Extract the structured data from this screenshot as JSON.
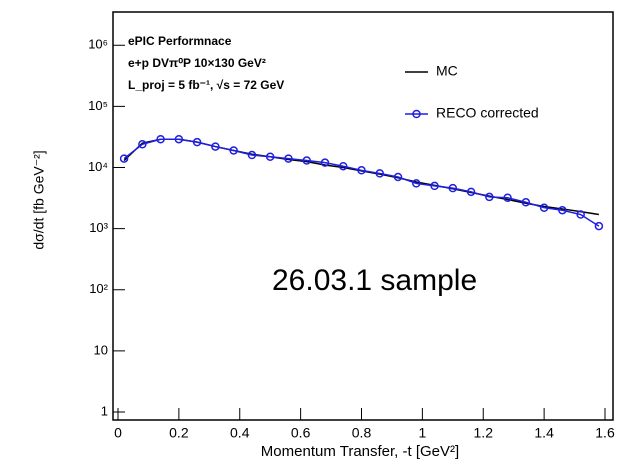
{
  "chart_data": {
    "type": "line",
    "log_y": true,
    "x_label": "Momentum Transfer, -t [GeV²]",
    "y_label": "dσ/dt [fb GeV⁻²]",
    "annotations": [
      "ePIC Performnace",
      "e+p DVπ⁰P 10×130 GeV²",
      "L_proj = 5 fb⁻¹, √s = 72 GeV",
      "26.03.1 sample"
    ],
    "x": [
      0.02,
      0.08,
      0.14,
      0.2,
      0.26,
      0.32,
      0.38,
      0.44,
      0.5,
      0.56,
      0.62,
      0.68,
      0.74,
      0.8,
      0.86,
      0.92,
      0.98,
      1.04,
      1.1,
      1.16,
      1.22,
      1.28,
      1.34,
      1.4,
      1.46,
      1.52,
      1.58
    ],
    "series": [
      {
        "name": "MC",
        "color": "#000000",
        "marker": "none",
        "values": [
          13000,
          25000,
          29000,
          29000,
          26000,
          22000,
          19000,
          16500,
          15000,
          13500,
          12500,
          11000,
          10000,
          8800,
          7800,
          6800,
          5800,
          5100,
          4500,
          3900,
          3400,
          3000,
          2600,
          2300,
          2100,
          1900,
          1700
        ]
      },
      {
        "name": "RECO corrected",
        "color": "#1f1fe0",
        "marker": "circle",
        "values": [
          14000,
          24000,
          29000,
          29000,
          26000,
          22000,
          19000,
          16000,
          15000,
          14000,
          13000,
          12000,
          10500,
          9000,
          8000,
          7000,
          5500,
          5000,
          4600,
          4000,
          3300,
          3200,
          2700,
          2200,
          2000,
          1700,
          1100
        ]
      }
    ],
    "xlim": [
      0,
      1.6
    ],
    "xticks": [
      0,
      0.2,
      0.4,
      0.6,
      0.8,
      1,
      1.2,
      1.4,
      1.6
    ],
    "ylim": [
      0.74,
      3500000
    ],
    "yticks": [
      1,
      10,
      {
        "value": 100,
        "label": "10²"
      },
      {
        "value": 1000,
        "label": "10³"
      },
      {
        "value": 10000,
        "label": "10⁴"
      },
      {
        "value": 100000,
        "label": "10⁵"
      },
      {
        "value": 1000000,
        "label": "10⁶"
      }
    ],
    "legend": "top-right"
  }
}
